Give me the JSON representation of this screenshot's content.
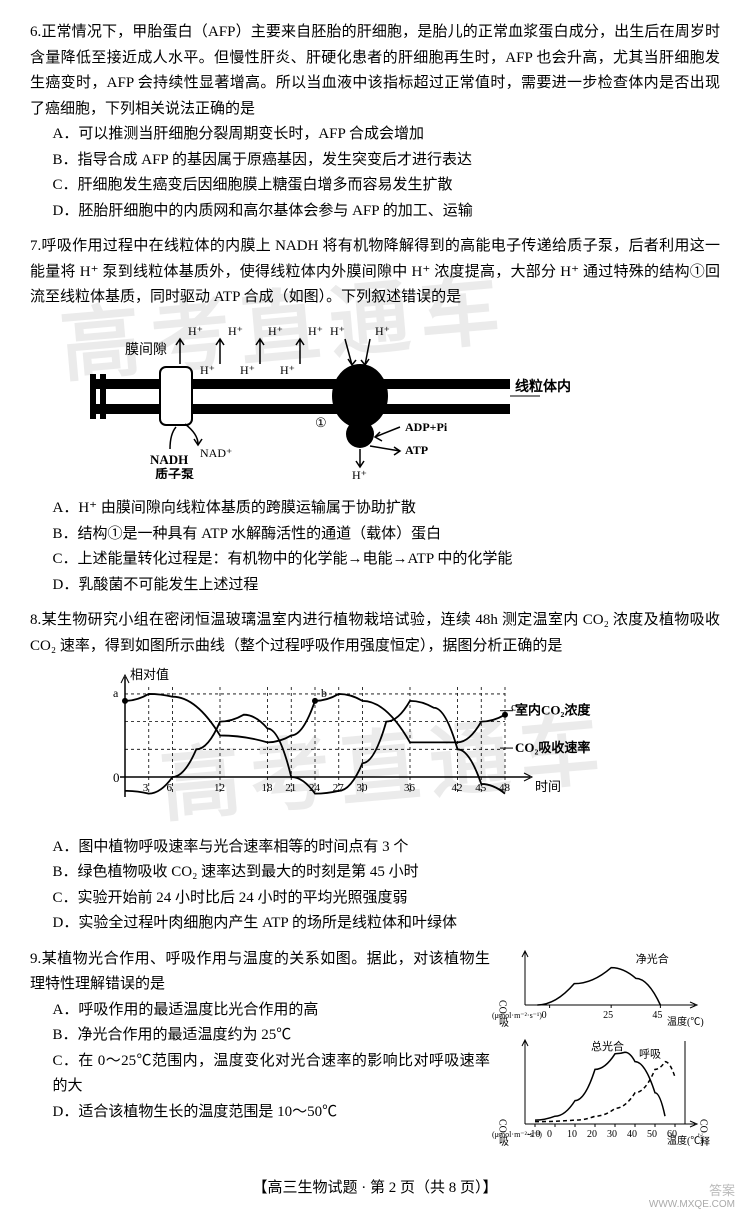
{
  "watermark": "高考直通车",
  "q6": {
    "num": "6.",
    "stem": "正常情况下，甲胎蛋白（AFP）主要来自胚胎的肝细胞，是胎儿的正常血浆蛋白成分，出生后在周岁时含量降低至接近成人水平。但慢性肝炎、肝硬化患者的肝细胞再生时，AFP 也会升高，尤其当肝细胞发生癌变时，AFP 会持续性显著增高。所以当血液中该指标超过正常值时，需要进一步检查体内是否出现了癌细胞，下列相关说法正确的是",
    "A": "A．可以推测当肝细胞分裂周期变长时，AFP 合成会增加",
    "B": "B．指导合成 AFP 的基因属于原癌基因，发生突变后才进行表达",
    "C": "C．肝细胞发生癌变后因细胞膜上糖蛋白增多而容易发生扩散",
    "D": "D．胚胎肝细胞中的内质网和高尔基体会参与 AFP 的加工、运输"
  },
  "q7": {
    "num": "7.",
    "stem": "呼吸作用过程中在线粒体的内膜上 NADH 将有机物降解得到的高能电子传递给质子泵，后者利用这一能量将 H⁺ 泵到线粒体基质外，使得线粒体内外膜间隙中 H⁺ 浓度提高，大部分 H⁺ 通过特殊的结构①回流至线粒体基质，同时驱动 ATP 合成（如图）。下列叙述错误的是",
    "A": "A．H⁺ 由膜间隙向线粒体基质的跨膜运输属于协助扩散",
    "B": "B．结构①是一种具有 ATP 水解酶活性的通道（载体）蛋白",
    "C": "C．上述能量转化过程是：有机物中的化学能→电能→ATP 中的化学能",
    "D": "D．乳酸菌不可能发生上述过程",
    "diagram": {
      "labels": {
        "intermembrane": "膜间隙",
        "inner_membrane": "线粒体内膜",
        "nadh": "NADH",
        "nad": "NAD⁺",
        "pump": "质子泵",
        "adp": "ADP+Pi",
        "atp": "ATP",
        "h": "H⁺",
        "one": "①"
      },
      "colors": {
        "membrane": "#000000",
        "bg": "#ffffff"
      }
    }
  },
  "q8": {
    "num": "8.",
    "stem": "某生物研究小组在密闭恒温玻璃温室内进行植物栽培试验，连续 48h 测定温室内 CO₂ 浓度及植物吸收 CO₂ 速率，得到如图所示曲线（整个过程呼吸作用强度恒定），据图分析正确的是",
    "A": "A．图中植物呼吸速率与光合速率相等的时间点有 3 个",
    "B": "B．绿色植物吸收 CO₂ 速率达到最大的时刻是第 45 小时",
    "C": "C．实验开始前 24 小时比后 24 小时的平均光照强度弱",
    "D": "D．实验全过程叶肉细胞内产生 ATP 的场所是线粒体和叶绿体",
    "chart": {
      "type": "line",
      "x_ticks": [
        3,
        6,
        12,
        18,
        21,
        24,
        27,
        30,
        36,
        42,
        45,
        48
      ],
      "x_label": "时间",
      "y_label": "相对值",
      "series1_label": "室内CO₂浓度",
      "series2_label": "CO₂吸收速率",
      "point_labels": [
        "a",
        "b",
        "c"
      ],
      "series1": [
        [
          0,
          55
        ],
        [
          3,
          60
        ],
        [
          6,
          58
        ],
        [
          12,
          30
        ],
        [
          18,
          25
        ],
        [
          21,
          30
        ],
        [
          24,
          55
        ],
        [
          27,
          60
        ],
        [
          30,
          55
        ],
        [
          36,
          25
        ],
        [
          42,
          25
        ],
        [
          45,
          40
        ],
        [
          48,
          45
        ]
      ],
      "series2": [
        [
          0,
          -10
        ],
        [
          3,
          -12
        ],
        [
          6,
          0
        ],
        [
          9,
          20
        ],
        [
          12,
          40
        ],
        [
          15,
          45
        ],
        [
          18,
          35
        ],
        [
          21,
          0
        ],
        [
          24,
          -12
        ],
        [
          27,
          -10
        ],
        [
          30,
          10
        ],
        [
          33,
          40
        ],
        [
          36,
          55
        ],
        [
          39,
          50
        ],
        [
          42,
          20
        ],
        [
          45,
          -5
        ],
        [
          48,
          -12
        ]
      ],
      "colors": {
        "line": "#000000",
        "grid": "#000000",
        "bg": "#ffffff"
      }
    }
  },
  "q9": {
    "num": "9.",
    "stem": "某植物光合作用、呼吸作用与温度的关系如图。据此，对该植物生理特性理解错误的是",
    "A": "A．呼吸作用的最适温度比光合作用的高",
    "B": "B．净光合作用的最适温度约为 25℃",
    "C": "C．在 0～25℃范围内，温度变化对光合速率的影响比对呼吸速率的大",
    "D": "D．适合该植物生长的温度范围是 10～50℃",
    "chart1": {
      "type": "line",
      "x_ticks": [
        0,
        25,
        45
      ],
      "x_label": "温度(℃)",
      "y_label_top": "CO₂吸收",
      "y_label_unit": "(μmol·m⁻²·s⁻¹)",
      "label": "净光合",
      "curve": [
        [
          -5,
          0
        ],
        [
          10,
          4
        ],
        [
          25,
          7
        ],
        [
          35,
          5
        ],
        [
          45,
          0
        ]
      ],
      "colors": {
        "line": "#000000"
      }
    },
    "chart2": {
      "type": "line",
      "x_ticks": [
        -10,
        0,
        10,
        20,
        30,
        40,
        50,
        60
      ],
      "x_label": "温度(℃)",
      "y_label": "CO₂吸收",
      "y_label_unit": "(μmol·m⁻²·s⁻¹)",
      "y_label_right": "CO₂释放",
      "label1": "总光合",
      "label2": "呼吸",
      "curve1": [
        [
          -10,
          0.5
        ],
        [
          0,
          1
        ],
        [
          10,
          3
        ],
        [
          20,
          7
        ],
        [
          30,
          9
        ],
        [
          35,
          9.2
        ],
        [
          40,
          8
        ],
        [
          50,
          4
        ],
        [
          55,
          1
        ]
      ],
      "curve2": [
        [
          -10,
          0.3
        ],
        [
          10,
          0.5
        ],
        [
          20,
          1
        ],
        [
          30,
          2
        ],
        [
          40,
          4
        ],
        [
          50,
          7
        ],
        [
          55,
          8
        ],
        [
          60,
          6
        ]
      ],
      "colors": {
        "line": "#000000"
      }
    }
  },
  "footer": "【高三生物试题 · 第 2 页（共 8 页）】",
  "brand1": "答案",
  "brand2": "高考直通车",
  "brand_url": "WWW.MXQE.COM"
}
